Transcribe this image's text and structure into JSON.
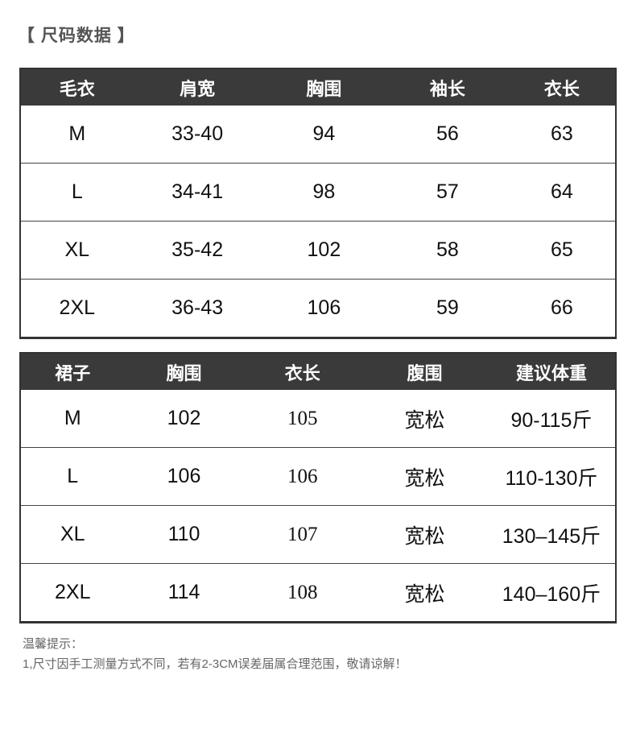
{
  "page_title": "【 尺码数据 】",
  "sweater_table": {
    "headers": [
      "毛衣",
      "肩宽",
      "胸围",
      "袖长",
      "衣长"
    ],
    "rows": [
      [
        "M",
        "33-40",
        "94",
        "56",
        "63"
      ],
      [
        "L",
        "34-41",
        "98",
        "57",
        "64"
      ],
      [
        "XL",
        "35-42",
        "102",
        "58",
        "65"
      ],
      [
        "2XL",
        "36-43",
        "106",
        "59",
        "66"
      ]
    ]
  },
  "skirt_table": {
    "headers": [
      "裙子",
      "胸围",
      "衣长",
      "腹围",
      "建议体重"
    ],
    "rows": [
      [
        "M",
        "102",
        "105",
        "宽松",
        "90-115斤"
      ],
      [
        "L",
        "106",
        "106",
        "宽松",
        "110-130斤"
      ],
      [
        "XL",
        "110",
        "107",
        "宽松",
        "130–145斤"
      ],
      [
        "2XL",
        "114",
        "108",
        "宽松",
        "140–160斤"
      ]
    ]
  },
  "notes": {
    "heading": "温馨提示：",
    "line1": "1,尺寸因手工测量方式不同，若有2-3CM误差届属合理范围，敬请谅解！"
  },
  "colors": {
    "header_bg": "#3a3a3a",
    "header_text": "#ffffff",
    "body_text": "#111111",
    "border": "#333333",
    "title_text": "#555555",
    "note_text": "#666666"
  }
}
